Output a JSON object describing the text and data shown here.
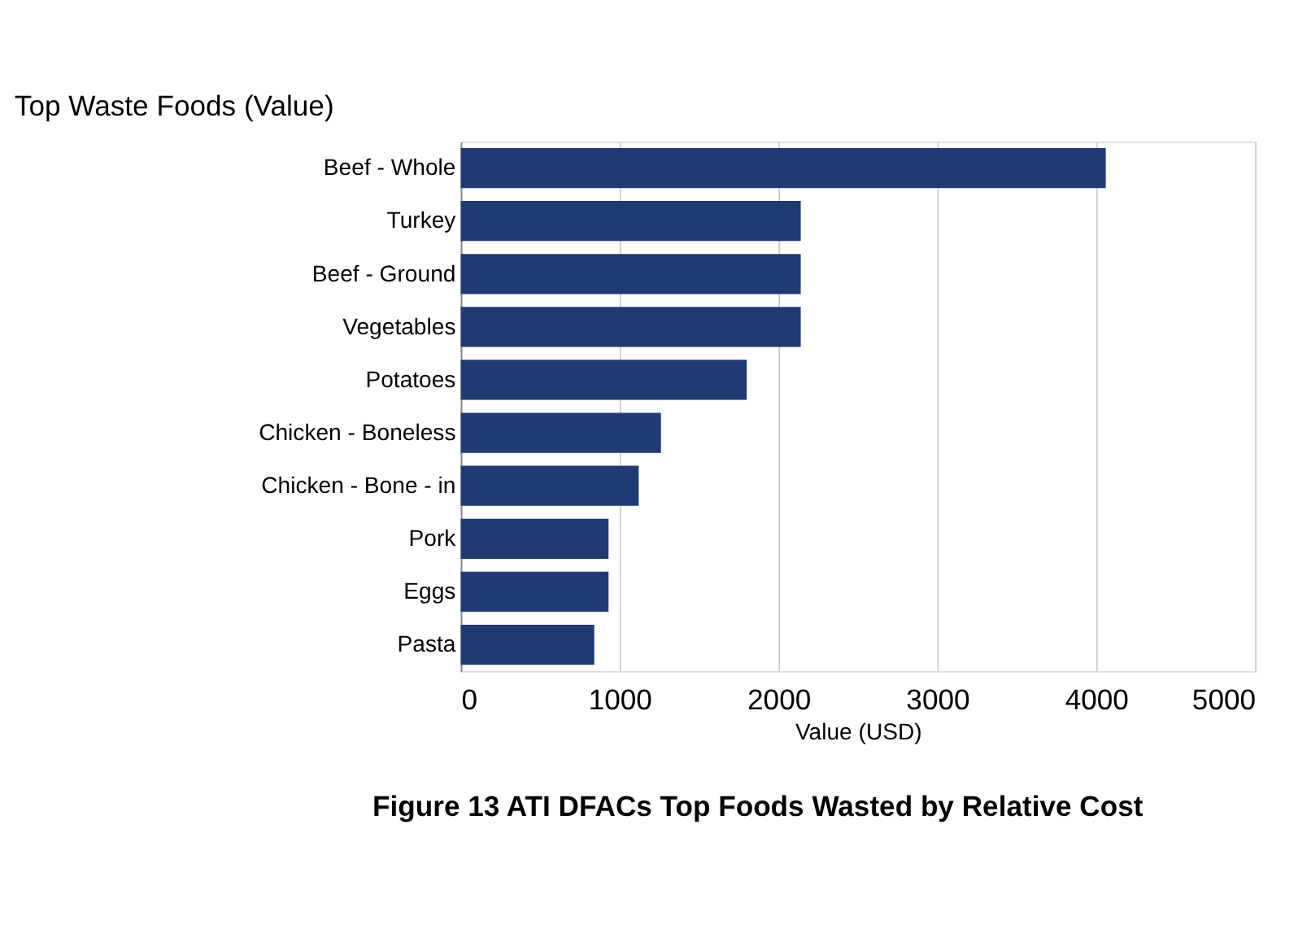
{
  "chart_data": {
    "type": "bar",
    "orientation": "horizontal",
    "title": "Top Waste Foods (Value)",
    "xlabel": "Value (USD)",
    "categories": [
      "Beef - Whole",
      "Turkey",
      "Beef - Ground",
      "Vegetables",
      "Potatoes",
      "Chicken - Boneless",
      "Chicken - Bone - in",
      "Pork",
      "Eggs",
      "Pasta"
    ],
    "values": [
      4060,
      2140,
      2140,
      2140,
      1800,
      1260,
      1120,
      930,
      930,
      840
    ],
    "color": "#1f3b73",
    "xlim": [
      0,
      5000
    ],
    "xticks": [
      0,
      1000,
      2000,
      3000,
      4000,
      5000
    ],
    "grid": "x",
    "annotations": [
      "Figure 13  ATI DFACs Top Foods Wasted by Relative Cost"
    ]
  }
}
